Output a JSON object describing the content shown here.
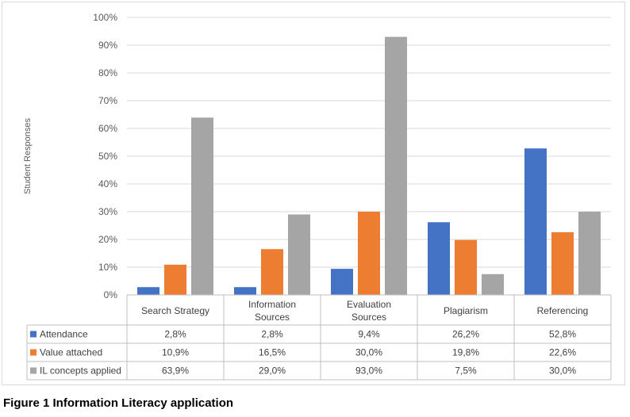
{
  "caption": "Figure 1 Information Literacy application",
  "chart_data": {
    "type": "bar",
    "title": "",
    "xlabel": "",
    "ylabel": "Student Responses",
    "ylim": [
      0,
      100
    ],
    "yticks": [
      "0%",
      "10%",
      "20%",
      "30%",
      "40%",
      "50%",
      "60%",
      "70%",
      "80%",
      "90%",
      "100%"
    ],
    "grid": true,
    "legend": "data-table",
    "categories": [
      [
        "Search Strategy"
      ],
      [
        "Information",
        "Sources"
      ],
      [
        "Evaluation",
        "Sources"
      ],
      [
        "Plagiarism"
      ],
      [
        "Referencing"
      ]
    ],
    "series": [
      {
        "name": "Attendance",
        "color": "#4472c4",
        "values": [
          2.8,
          2.8,
          9.4,
          26.2,
          52.8
        ],
        "labels": [
          "2,8%",
          "2,8%",
          "9,4%",
          "26,2%",
          "52,8%"
        ]
      },
      {
        "name": "Value attached",
        "color": "#ed7d31",
        "values": [
          10.9,
          16.5,
          30.0,
          19.8,
          22.6
        ],
        "labels": [
          "10,9%",
          "16,5%",
          "30,0%",
          "19,8%",
          "22,6%"
        ]
      },
      {
        "name": "IL concepts applied",
        "color": "#a5a5a5",
        "values": [
          63.9,
          29.0,
          93.0,
          7.5,
          30.0
        ],
        "labels": [
          "63,9%",
          "29,0%",
          "93,0%",
          "7,5%",
          "30,0%"
        ]
      }
    ]
  }
}
